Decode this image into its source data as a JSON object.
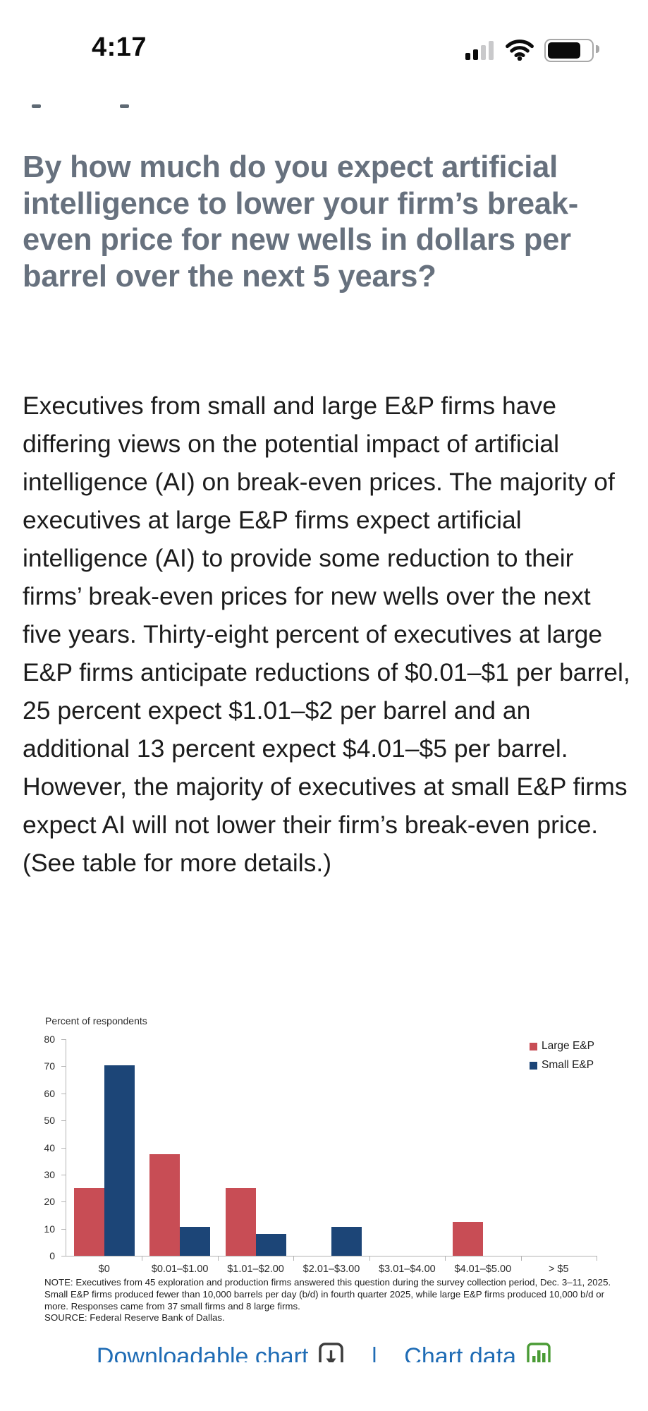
{
  "status_bar": {
    "time": "4:17"
  },
  "article": {
    "title": "By how much do you expect artificial intelligence to lower your firm’s break-even price for new wells in dollars per barrel over the next 5 years?",
    "body": "Executives from small and large E&P firms have differing views on the potential impact of artificial intelligence (AI) on break-even prices. The majority of executives at large E&P firms expect artificial intelligence (AI) to provide some reduction to their firms’ break-even prices for new wells over the next five years. Thirty-eight percent of executives at large E&P firms anticipate reductions of $0.01–$1 per barrel, 25 percent expect $1.01–$2 per barrel and an additional 13 percent expect $4.01–$5 per barrel. However, the majority of executives at small E&P firms expect AI will not lower their firm’s break-even price. (See table for more details.)"
  },
  "chart_data": {
    "type": "bar",
    "axis_title": "Percent of respondents",
    "categories": [
      "$0",
      "$0.01–$1.00",
      "$1.01–$2.00",
      "$2.01–$3.00",
      "$3.01–$4.00",
      "$4.01–$5.00",
      "> $5"
    ],
    "series": [
      {
        "name": "Large E&P",
        "color": "#c84d55",
        "values": [
          25,
          37.5,
          25,
          0,
          0,
          12.5,
          0
        ]
      },
      {
        "name": "Small E&P",
        "color": "#1c4577",
        "values": [
          70.3,
          10.8,
          8.1,
          10.8,
          0,
          0,
          0
        ]
      }
    ],
    "ylim": [
      0,
      80
    ],
    "yticks": [
      0,
      10,
      20,
      30,
      40,
      50,
      60,
      70,
      80
    ],
    "legend_position": "top-right",
    "grid": false,
    "note": "NOTE: Executives from 45 exploration and production firms answered this question during the survey collection period, Dec. 3–11, 2025. Small E&P firms produced fewer than 10,000 barrels per day (b/d) in fourth quarter 2025, while large E&P firms produced 10,000 b/d or more. Responses came from 37 small firms and 8 large firms.",
    "source": "SOURCE: Federal Reserve Bank of Dallas."
  },
  "footer": {
    "downloadable_chart_label": "Downloadable chart",
    "separator": "|",
    "chart_data_label": "Chart data",
    "link_color": "#1f6cb5",
    "chart_icon_color": "#4a9b35"
  }
}
